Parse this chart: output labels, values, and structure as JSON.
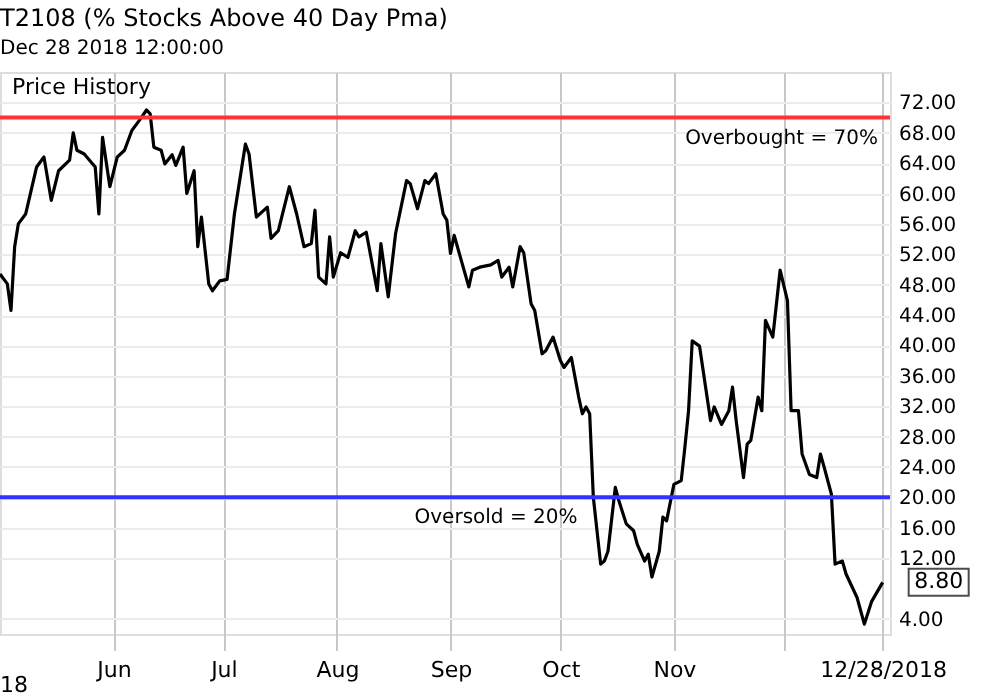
{
  "chart_data": {
    "type": "line",
    "title": "T2108 (% Stocks Above 40 Day Pma)",
    "subtitle": "Dec 28 2018 12:00:00",
    "x": [
      "2018-05-01",
      "2018-05-03",
      "2018-05-04",
      "2018-05-05",
      "2018-05-06",
      "2018-05-08",
      "2018-05-11",
      "2018-05-13",
      "2018-05-15",
      "2018-05-17",
      "2018-05-20",
      "2018-05-21",
      "2018-05-22",
      "2018-05-24",
      "2018-05-27",
      "2018-05-28",
      "2018-05-29",
      "2018-05-31",
      "2018-06-02",
      "2018-06-04",
      "2018-06-06",
      "2018-06-08",
      "2018-06-10",
      "2018-06-11",
      "2018-06-12",
      "2018-06-14",
      "2018-06-15",
      "2018-06-17",
      "2018-06-18",
      "2018-06-20",
      "2018-06-21",
      "2018-06-23",
      "2018-06-24",
      "2018-06-25",
      "2018-06-27",
      "2018-06-28",
      "2018-06-30",
      "2018-07-02",
      "2018-07-04",
      "2018-07-07",
      "2018-07-08",
      "2018-07-10",
      "2018-07-13",
      "2018-07-14",
      "2018-07-16",
      "2018-07-19",
      "2018-07-21",
      "2018-07-23",
      "2018-07-25",
      "2018-07-26",
      "2018-07-27",
      "2018-07-29",
      "2018-07-30",
      "2018-07-31",
      "2018-08-02",
      "2018-08-04",
      "2018-08-06",
      "2018-08-07",
      "2018-08-09",
      "2018-08-12",
      "2018-08-13",
      "2018-08-15",
      "2018-08-17",
      "2018-08-20",
      "2018-08-21",
      "2018-08-23",
      "2018-08-25",
      "2018-08-26",
      "2018-08-28",
      "2018-08-30",
      "2018-08-31",
      "2018-09-01",
      "2018-09-02",
      "2018-09-06",
      "2018-09-07",
      "2018-09-09",
      "2018-09-12",
      "2018-09-14",
      "2018-09-15",
      "2018-09-17",
      "2018-09-18",
      "2018-09-20",
      "2018-09-21",
      "2018-09-23",
      "2018-09-24",
      "2018-09-26",
      "2018-09-27",
      "2018-09-29",
      "2018-10-01",
      "2018-10-02",
      "2018-10-04",
      "2018-10-06",
      "2018-10-07",
      "2018-10-08",
      "2018-10-09",
      "2018-10-10",
      "2018-10-12",
      "2018-10-13",
      "2018-10-14",
      "2018-10-16",
      "2018-10-17",
      "2018-10-19",
      "2018-10-21",
      "2018-10-22",
      "2018-10-24",
      "2018-10-25",
      "2018-10-26",
      "2018-10-28",
      "2018-10-29",
      "2018-10-30",
      "2018-11-01",
      "2018-11-03",
      "2018-11-04",
      "2018-11-05",
      "2018-11-06",
      "2018-11-08",
      "2018-11-11",
      "2018-11-12",
      "2018-11-14",
      "2018-11-16",
      "2018-11-17",
      "2018-11-18",
      "2018-11-20",
      "2018-11-21",
      "2018-11-22",
      "2018-11-24",
      "2018-11-25",
      "2018-11-26",
      "2018-11-28",
      "2018-11-30",
      "2018-12-02",
      "2018-12-03",
      "2018-12-05",
      "2018-12-06",
      "2018-12-08",
      "2018-12-10",
      "2018-12-11",
      "2018-12-12",
      "2018-12-14",
      "2018-12-15",
      "2018-12-17",
      "2018-12-18",
      "2018-12-21",
      "2018-12-23",
      "2018-12-25",
      "2018-12-28"
    ],
    "series": [
      {
        "color": "#000000",
        "values": [
          49.4,
          48.1,
          44.6,
          53,
          56,
          57.3,
          63.5,
          64.8,
          59.1,
          63,
          64.4,
          68,
          65.7,
          65.2,
          63.5,
          57.3,
          67.4,
          60.9,
          64.8,
          65.7,
          68.3,
          69.6,
          71,
          70.5,
          66.1,
          65.7,
          63.9,
          65.1,
          63.7,
          66.1,
          60,
          63,
          53,
          56.9,
          48.1,
          47.2,
          48.5,
          48.7,
          57.3,
          66.5,
          65.2,
          56.9,
          58.2,
          54.1,
          55.1,
          60.9,
          57.3,
          53,
          53.4,
          57.8,
          49,
          48.1,
          54.3,
          49,
          52.2,
          51.6,
          55.1,
          54.3,
          54.9,
          47.2,
          53.4,
          46.4,
          54.7,
          61.7,
          61.3,
          58,
          61.7,
          61.3,
          62.6,
          57.3,
          56.5,
          52.1,
          54.5,
          47.7,
          49.9,
          50.3,
          50.6,
          51.2,
          49,
          50.3,
          47.7,
          53,
          52.2,
          45.5,
          44.6,
          38.9,
          39.3,
          41.1,
          38,
          37.1,
          38.4,
          33.2,
          31,
          31.9,
          31,
          20,
          11.2,
          11.6,
          12.9,
          21.3,
          19.5,
          16.5,
          15.6,
          13.8,
          11.6,
          12.5,
          9.5,
          12.9,
          17.4,
          16.9,
          21.7,
          22.2,
          26.6,
          31.4,
          40.6,
          39.9,
          30.1,
          31.9,
          29.6,
          31.4,
          34.5,
          30.1,
          22.6,
          27,
          27.5,
          33.2,
          31.4,
          43.3,
          41.1,
          49.9,
          45.9,
          31.4,
          31.4,
          25.7,
          23,
          22.6,
          25.7,
          24,
          20.4,
          11.2,
          11.6,
          9.9,
          6.8,
          3.3,
          6.3,
          8.8
        ]
      }
    ],
    "xlim": [
      "2018-05-01",
      "2018-12-30"
    ],
    "xticks": [
      {
        "value": "2018-06-01",
        "label": "Jun"
      },
      {
        "value": "2018-07-01",
        "label": "Jul"
      },
      {
        "value": "2018-08-01",
        "label": "Aug"
      },
      {
        "value": "2018-09-01",
        "label": "Sep"
      },
      {
        "value": "2018-10-01",
        "label": "Oct"
      },
      {
        "value": "2018-11-01",
        "label": "Nov"
      },
      {
        "value": "2018-12-01",
        "label": null
      },
      {
        "value": "2018-12-28",
        "label": "12/28/2018"
      }
    ],
    "ylim": [
      2,
      76
    ],
    "yticks": [
      {
        "value": 4,
        "label": "4.00"
      },
      {
        "value": 12,
        "label": "12.00"
      },
      {
        "value": 16,
        "label": "16.00"
      },
      {
        "value": 20,
        "label": "20.00"
      },
      {
        "value": 24,
        "label": "24.00"
      },
      {
        "value": 28,
        "label": "28.00"
      },
      {
        "value": 32,
        "label": "32.00"
      },
      {
        "value": 36,
        "label": "36.00"
      },
      {
        "value": 40,
        "label": "40.00"
      },
      {
        "value": 44,
        "label": "44.00"
      },
      {
        "value": 48,
        "label": "48.00"
      },
      {
        "value": 52,
        "label": "52.00"
      },
      {
        "value": 56,
        "label": "56.00"
      },
      {
        "value": 60,
        "label": "60.00"
      },
      {
        "value": 64,
        "label": "64.00"
      },
      {
        "value": 68,
        "label": "68.00"
      },
      {
        "value": 72,
        "label": "72.00"
      }
    ],
    "ref_lines": [
      {
        "axis": "y",
        "value": 70,
        "label": "Overbought = 70%",
        "color": "#ff3333"
      },
      {
        "axis": "y",
        "value": 20,
        "label": "Oversold = 20%",
        "color": "#3333ff"
      }
    ],
    "annotations": [
      "Price History",
      {
        "text": "8.80",
        "x": "2018-12-28",
        "y": 8.8
      },
      "18"
    ],
    "grid": true,
    "marker": "none",
    "line_style": "solid"
  }
}
